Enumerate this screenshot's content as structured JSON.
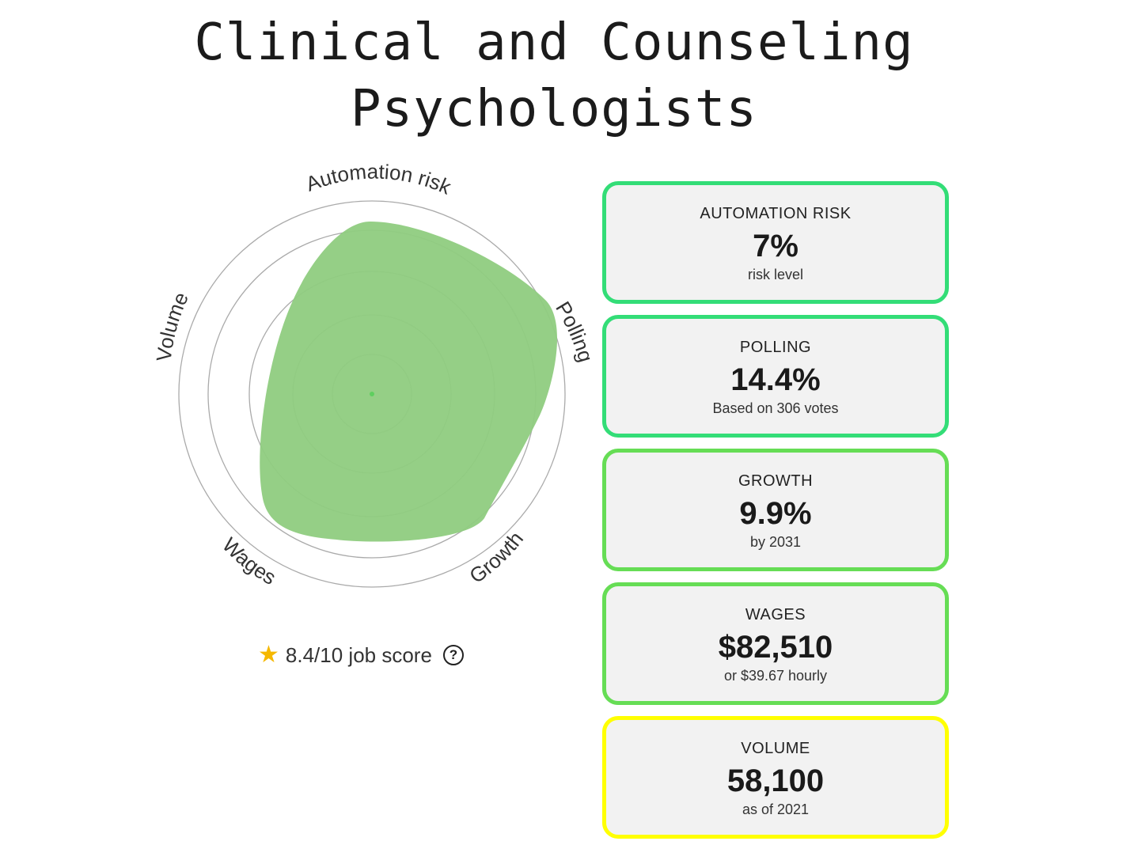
{
  "page": {
    "title_line1": "Clinical and Counseling",
    "title_line2": "Psychologists"
  },
  "radar": {
    "axes": [
      "Automation risk",
      "Polling",
      "Growth",
      "Wages",
      "Volume"
    ],
    "fill_color": "#8fcc80",
    "ring_color": "#aaaaaa"
  },
  "score": {
    "text": "8.4/10 job score",
    "star_icon": "star-icon",
    "help_icon": "question-circle-icon",
    "help_glyph": "?"
  },
  "cards": [
    {
      "label": "AUTOMATION RISK",
      "value": "7%",
      "sub": "risk level",
      "border_color": "#33dd77"
    },
    {
      "label": "POLLING",
      "value": "14.4%",
      "sub": "Based on 306 votes",
      "border_color": "#33dd77"
    },
    {
      "label": "GROWTH",
      "value": "9.9%",
      "sub": "by 2031",
      "border_color": "#66dd55"
    },
    {
      "label": "WAGES",
      "value": "$82,510",
      "sub": "or $39.67 hourly",
      "border_color": "#66dd55"
    },
    {
      "label": "VOLUME",
      "value": "58,100",
      "sub": "as of 2021",
      "border_color": "#ffff00"
    }
  ]
}
